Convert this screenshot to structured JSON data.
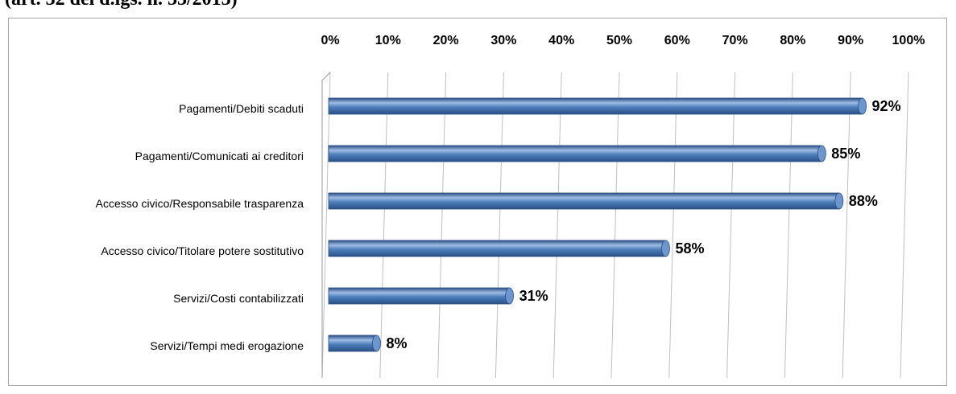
{
  "page": {
    "heading": "(art. 32 del d.lgs. n. 33/2013)"
  },
  "chart_data": {
    "type": "bar",
    "orientation": "horizontal",
    "style": "3d-cylinder",
    "title": "",
    "xlabel": "",
    "ylabel": "",
    "categories": [
      "Pagamenti/Debiti scaduti",
      "Pagamenti/Comunicati ai creditori",
      "Accesso civico/Responsabile trasparenza",
      "Accesso civico/Titolare potere sostitutivo",
      "Servizi/Costi contabilizzati",
      "Servizi/Tempi medi erogazione"
    ],
    "values": [
      92,
      85,
      88,
      58,
      31,
      8
    ],
    "data_labels": [
      "92%",
      "85%",
      "88%",
      "58%",
      "31%",
      "8%"
    ],
    "value_axis": {
      "position": "top",
      "min": 0,
      "max": 100,
      "step": 10,
      "tick_labels": [
        "0%",
        "10%",
        "20%",
        "30%",
        "40%",
        "50%",
        "60%",
        "70%",
        "80%",
        "90%",
        "100%"
      ]
    },
    "grid": true,
    "legend": "none",
    "colors": {
      "bar": "#4f81bd",
      "bar_highlight": "#9fbce4",
      "bar_shadow": "#2a4f86",
      "bar_end": "#6d96cf",
      "grid": "#bfbfbf",
      "text": "#000000"
    }
  }
}
